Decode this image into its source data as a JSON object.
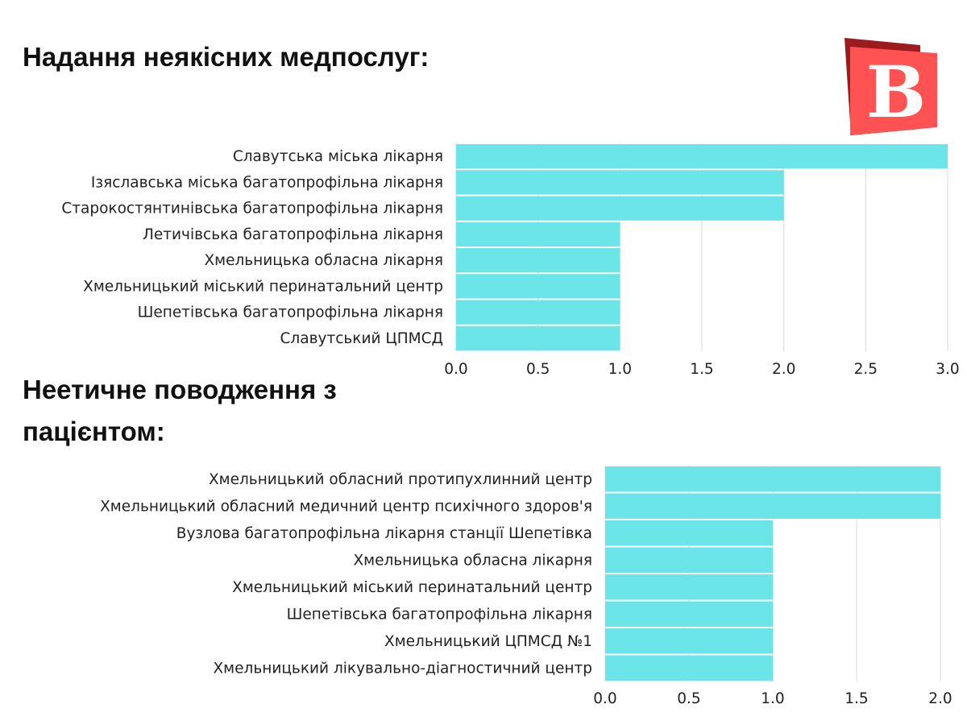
{
  "brand": {
    "logo_letter": "B",
    "logo_colors": {
      "front": "#ff5252",
      "back": "#9b1c1c"
    }
  },
  "colors": {
    "bar": "#6ce5e8",
    "grid": "#d9d9d9"
  },
  "chart_data": [
    {
      "type": "bar",
      "orientation": "horizontal",
      "title": "Надання неякісних медпослуг:",
      "categories": [
        "Славутська міська лікарня",
        "Ізяславська міська багатопрофільна лікарня",
        "Старокостянтинівська багатопрофільна лікарня",
        "Летичівська багатопрофільна лікарня",
        "Хмельницька обласна лікарня",
        "Хмельницький міський перинатальний центр",
        "Шепетівська багатопрофільна лікарня",
        "Славутський ЦПМСД"
      ],
      "values": [
        3,
        2,
        2,
        1,
        1,
        1,
        1,
        1
      ],
      "xlim": [
        0,
        3
      ],
      "xticks": [
        "0.0",
        "0.5",
        "1.0",
        "1.5",
        "2.0",
        "2.5",
        "3.0"
      ],
      "grid": true
    },
    {
      "type": "bar",
      "orientation": "horizontal",
      "title": "Неетичне поводження з пацієнтом:",
      "categories": [
        "Хмельницький обласний протипухлинний центр",
        "Хмельницький обласний медичний центр психічного здоров'я",
        "Вузлова багатопрофільна лікарня станції Шепетівка",
        "Хмельницька обласна лікарня",
        "Хмельницький міський перинатальний центр",
        "Шепетівська багатопрофільна лікарня",
        "Хмельницький ЦПМСД №1",
        "Хмельницький лікувально-діагностичний центр"
      ],
      "values": [
        2,
        2,
        1,
        1,
        1,
        1,
        1,
        1
      ],
      "xlim": [
        0,
        2
      ],
      "xticks": [
        "0.0",
        "0.5",
        "1.0",
        "1.5",
        "2.0"
      ],
      "grid": true
    }
  ]
}
